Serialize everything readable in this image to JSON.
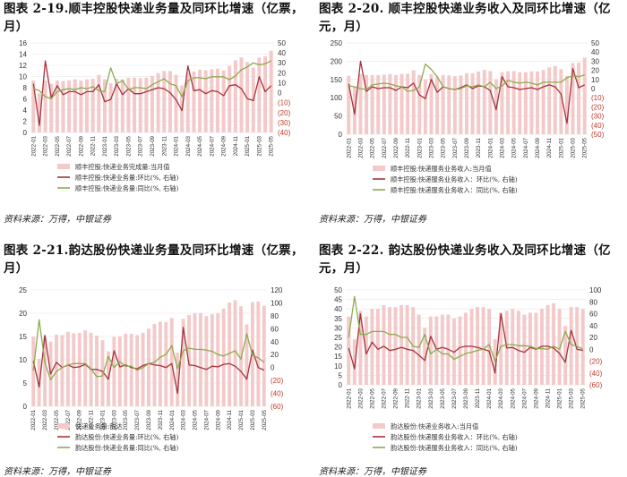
{
  "page": {
    "panels": [
      {
        "title": "图表 2-19.顺丰控股快递业务量及同环比增速（亿票，月）",
        "source": "资料来源：万得，中银证券"
      },
      {
        "title": "图表 2-20. 顺丰控股快递业务收入及同环比增速（亿元，月）",
        "source": "资料来源：万得，中银证券"
      },
      {
        "title": "图表 2-21.韵达股份快递业务量及同环比增速（亿票，月）",
        "source": "资料来源：万得，中银证券"
      },
      {
        "title": "图表 2-22. 韵达股份快递业务收入及同环比增速（亿元，月）",
        "source": "资料来源：万得，中银证券"
      }
    ]
  },
  "chart_data": [
    {
      "type": "bar",
      "x": [
        "2022-01",
        "2022-02",
        "2022-03",
        "2022-04",
        "2022-05",
        "2022-06",
        "2022-07",
        "2022-08",
        "2022-09",
        "2022-10",
        "2022-11",
        "2022-12",
        "2023-01",
        "2023-02",
        "2023-03",
        "2023-04",
        "2023-05",
        "2023-06",
        "2023-07",
        "2023-08",
        "2023-09",
        "2023-10",
        "2023-11",
        "2023-12",
        "2024-01",
        "2024-02",
        "2024-03",
        "2024-04",
        "2024-05",
        "2024-06",
        "2024-07",
        "2024-08",
        "2024-09",
        "2024-10",
        "2024-11",
        "2024-12",
        "2025-01",
        "2025-02",
        "2025-03",
        "2025-04",
        "2025-05"
      ],
      "x_tick_labels": [
        "2022-01",
        "2022-03",
        "2022-05",
        "2022-07",
        "2022-09",
        "2022-11",
        "2023-01",
        "2023-03",
        "2023-05",
        "2023-07",
        "2023-09",
        "2023-11",
        "2024-01",
        "2024-03",
        "2024-05",
        "2024-07",
        "2024-09",
        "2024-11",
        "2025-01",
        "2025-03",
        "2025-05"
      ],
      "y_left": {
        "range": [
          0,
          16
        ],
        "ticks": [
          0,
          2,
          4,
          6,
          8,
          10,
          12,
          14,
          16
        ]
      },
      "y_right": {
        "range": [
          -40,
          50
        ],
        "ticks": [
          "(40)",
          "(30)",
          "(20)",
          "(10)",
          "0",
          "10",
          "20",
          "30",
          "40",
          "50"
        ]
      },
      "series": [
        {
          "name": "顺丰控股:快递业务完成量:当月值",
          "axis": "left",
          "style": "bar",
          "color": "#f3c9c9",
          "values": [
            9.3,
            7.0,
            9.3,
            8.7,
            9.3,
            9.2,
            9.3,
            9.5,
            9.3,
            9.5,
            9.6,
            10.3,
            9.5,
            8.8,
            9.6,
            9.5,
            9.8,
            9.8,
            9.7,
            9.8,
            10.1,
            10.6,
            11.0,
            11.0,
            10.3,
            8.4,
            10.7,
            10.9,
            11.2,
            11.1,
            11.3,
            11.4,
            11.1,
            11.9,
            12.9,
            13.4,
            12.6,
            11.6,
            13.4,
            13.6,
            14.6
          ]
        },
        {
          "name": "顺丰控股:快递业务量:环比(%, 右轴)",
          "axis": "right",
          "style": "line",
          "color": "#a8323c",
          "values": [
            9,
            -33,
            32,
            -5,
            7,
            -2,
            1,
            1,
            -2,
            1,
            1,
            8,
            -9,
            -7,
            9,
            -2,
            4,
            -1,
            -1,
            1,
            3,
            5,
            4,
            0,
            -7,
            -18,
            27,
            2,
            3,
            -1,
            2,
            1,
            -3,
            7,
            8,
            4,
            -6,
            -8,
            16,
            1,
            7
          ]
        },
        {
          "name": "顺丰控股:快递业务量:同比(%, 右轴)",
          "axis": "right",
          "style": "line",
          "color": "#8cab4e",
          "values": [
            4,
            2,
            -4,
            -6,
            1,
            3,
            4,
            3,
            5,
            4,
            6,
            2,
            1,
            25,
            9,
            12,
            3,
            5,
            5,
            4,
            8,
            11,
            14,
            9,
            7,
            -4,
            12,
            15,
            15,
            14,
            16,
            16,
            16,
            13,
            17,
            23,
            26,
            30,
            28,
            29,
            32
          ]
        }
      ]
    },
    {
      "type": "bar",
      "x": [
        "2022-01",
        "2022-02",
        "2022-03",
        "2022-04",
        "2022-05",
        "2022-06",
        "2022-07",
        "2022-08",
        "2022-09",
        "2022-10",
        "2022-11",
        "2022-12",
        "2023-01",
        "2023-02",
        "2023-03",
        "2023-04",
        "2023-05",
        "2023-06",
        "2023-07",
        "2023-08",
        "2023-09",
        "2023-10",
        "2023-11",
        "2023-12",
        "2024-01",
        "2024-02",
        "2024-03",
        "2024-04",
        "2024-05",
        "2024-06",
        "2024-07",
        "2024-08",
        "2024-09",
        "2024-10",
        "2024-11",
        "2024-12",
        "2025-01",
        "2025-02",
        "2025-03",
        "2025-04",
        "2025-05"
      ],
      "x_tick_labels": [
        "2022-01",
        "2022-03",
        "2022-05",
        "2022-07",
        "2022-09",
        "2022-11",
        "2023-01",
        "2023-03",
        "2023-05",
        "2023-07",
        "2023-09",
        "2023-11",
        "2024-01",
        "2024-03",
        "2024-05",
        "2024-07",
        "2024-09",
        "2024-11",
        "2025-01",
        "2025-03",
        "2025-05"
      ],
      "y_left": {
        "range": [
          0,
          250
        ],
        "ticks": [
          0,
          50,
          100,
          150,
          200,
          250
        ]
      },
      "y_right": {
        "range": [
          -50,
          50
        ],
        "ticks": [
          "(50)",
          "(40)",
          "(30)",
          "(20)",
          "(10)",
          "0",
          "10",
          "20",
          "30",
          "40",
          "50"
        ]
      },
      "series": [
        {
          "name": "顺丰控股:快递服务业务收入:当月值",
          "axis": "left",
          "style": "bar",
          "color": "#f3c9c9",
          "values": [
            160,
            130,
            165,
            162,
            162,
            162,
            163,
            165,
            162,
            165,
            166,
            175,
            162,
            150,
            165,
            158,
            162,
            161,
            159,
            161,
            167,
            167,
            172,
            176,
            173,
            150,
            170,
            173,
            173,
            170,
            170,
            172,
            172,
            176,
            183,
            187,
            178,
            160,
            195,
            196,
            210
          ]
        },
        {
          "name": "顺丰控股:快递服务业务收入：环比(%, 右轴)",
          "axis": "right",
          "style": "line",
          "color": "#a8323c",
          "values": [
            5,
            -28,
            30,
            -3,
            2,
            0,
            1,
            1,
            -2,
            2,
            1,
            6,
            -7,
            -11,
            10,
            -4,
            2,
            0,
            -1,
            1,
            4,
            0,
            3,
            2,
            -2,
            -23,
            13,
            2,
            1,
            -1,
            0,
            1,
            -1,
            2,
            4,
            2,
            -6,
            -38,
            22,
            1,
            4
          ]
        },
        {
          "name": "顺丰控股:快递服务业务收入：同比(%, 右轴)",
          "axis": "right",
          "style": "line",
          "color": "#8cab4e",
          "values": [
            3,
            2,
            0,
            -1,
            4,
            5,
            6,
            5,
            3,
            2,
            -3,
            -2,
            2,
            27,
            21,
            13,
            2,
            0,
            -1,
            0,
            3,
            2,
            4,
            2,
            7,
            0,
            3,
            9,
            7,
            6,
            7,
            6,
            4,
            7,
            7,
            7,
            7,
            12,
            14,
            13,
            15
          ]
        }
      ]
    },
    {
      "type": "bar",
      "x": [
        "2022-01",
        "2022-02",
        "2022-03",
        "2022-04",
        "2022-05",
        "2022-06",
        "2022-07",
        "2022-08",
        "2022-09",
        "2022-10",
        "2022-11",
        "2022-12",
        "2023-01",
        "2023-02",
        "2023-03",
        "2023-04",
        "2023-05",
        "2023-06",
        "2023-07",
        "2023-08",
        "2023-09",
        "2023-10",
        "2023-11",
        "2023-12",
        "2024-01",
        "2024-02",
        "2024-03",
        "2024-04",
        "2024-05",
        "2024-06",
        "2024-07",
        "2024-08",
        "2024-09",
        "2024-10",
        "2024-11",
        "2024-12",
        "2025-01",
        "2025-02",
        "2025-03",
        "2025-04",
        "2025-05"
      ],
      "x_tick_labels": [
        "2022-01",
        "2022-03",
        "2022-05",
        "2022-07",
        "2022-09",
        "2022-11",
        "2023-01",
        "2023-03",
        "2023-05",
        "2023-07",
        "2023-09",
        "2023-11",
        "2024-01",
        "2024-03",
        "2024-05",
        "2024-07",
        "2024-09",
        "2024-11",
        "2025-01",
        "2025-03",
        "2025-05"
      ],
      "y_left": {
        "range": [
          0,
          25
        ],
        "ticks": [
          0,
          5,
          10,
          15,
          20,
          25
        ]
      },
      "y_right": {
        "range": [
          -60,
          120
        ],
        "ticks": [
          "(60)",
          "(40)",
          "(20)",
          "0",
          "20",
          "40",
          "60",
          "80",
          "100",
          "120"
        ]
      },
      "series": [
        {
          "name": "快递业务量:韵达",
          "axis": "left",
          "style": "bar",
          "color": "#f3c9c9",
          "values": [
            15.0,
            10.2,
            15.0,
            13.9,
            15.4,
            15.3,
            16.0,
            15.7,
            15.8,
            16.3,
            15.8,
            15.2,
            14.2,
            11.8,
            14.9,
            15.0,
            15.6,
            15.6,
            15.3,
            15.8,
            16.7,
            17.7,
            18.2,
            18.1,
            19.0,
            11.5,
            18.8,
            19.6,
            20.0,
            20.0,
            19.4,
            19.8,
            20.0,
            21.0,
            22.3,
            22.8,
            21.5,
            17.6,
            22.4,
            22.5,
            21.6
          ]
        },
        {
          "name": "韵达股份:快递业务量:环比(%, 右轴)",
          "axis": "right",
          "style": "line",
          "color": "#a8323c",
          "values": [
            10,
            -30,
            50,
            -10,
            8,
            0,
            4,
            0,
            1,
            5,
            -3,
            -3,
            -6,
            -18,
            26,
            1,
            4,
            0,
            -2,
            3,
            6,
            4,
            3,
            0,
            6,
            -40,
            62,
            4,
            3,
            0,
            -3,
            2,
            1,
            5,
            6,
            2,
            -6,
            -18,
            27,
            0,
            -4
          ]
        },
        {
          "name": "韵达股份:快递业务量:同比(%, 右轴)",
          "axis": "right",
          "style": "line",
          "color": "#8cab4e",
          "values": [
            -5,
            74,
            8,
            -19,
            -6,
            0,
            4,
            6,
            6,
            6,
            -2,
            -14,
            -13,
            17,
            0,
            9,
            2,
            2,
            -4,
            0,
            6,
            8,
            16,
            20,
            34,
            -2,
            26,
            30,
            28,
            28,
            27,
            25,
            20,
            18,
            22,
            26,
            13,
            52,
            19,
            15,
            8
          ]
        }
      ]
    },
    {
      "type": "bar",
      "x": [
        "2022-01",
        "2022-02",
        "2022-03",
        "2022-04",
        "2022-05",
        "2022-06",
        "2022-07",
        "2022-08",
        "2022-09",
        "2022-10",
        "2022-11",
        "2022-12",
        "2023-01",
        "2023-02",
        "2023-03",
        "2023-04",
        "2023-05",
        "2023-06",
        "2023-07",
        "2023-08",
        "2023-09",
        "2023-10",
        "2023-11",
        "2023-12",
        "2024-01",
        "2024-02",
        "2024-03",
        "2024-04",
        "2024-05",
        "2024-06",
        "2024-07",
        "2024-08",
        "2024-09",
        "2024-10",
        "2024-11",
        "2024-12",
        "2025-01",
        "2025-02",
        "2025-03",
        "2025-04",
        "2025-05"
      ],
      "x_tick_labels": [
        "2022-01",
        "2022-03",
        "2022-05",
        "2022-07",
        "2022-09",
        "2022-11",
        "2023-01",
        "2023-03",
        "2023-05",
        "2023-07",
        "2023-09",
        "2023-11",
        "2024-01",
        "2024-03",
        "2024-05",
        "2024-07",
        "2024-09",
        "2024-11",
        "2025-01",
        "2025-03",
        "2025-05"
      ],
      "y_left": {
        "range": [
          0,
          50
        ],
        "ticks": [
          0,
          5,
          10,
          15,
          20,
          25,
          30,
          35,
          40,
          45,
          50
        ]
      },
      "y_right": {
        "range": [
          -60,
          100
        ],
        "ticks": [
          "(60)",
          "(40)",
          "(20)",
          "0",
          "20",
          "40",
          "60",
          "80",
          "100"
        ]
      },
      "series": [
        {
          "name": "韵达股份:快递业务收入:当月值",
          "axis": "left",
          "style": "bar",
          "color": "#f3c9c9",
          "values": [
            36,
            24,
            39,
            36,
            40,
            40,
            42,
            41,
            41,
            42,
            42,
            41,
            37,
            30,
            36,
            36,
            37,
            37,
            35,
            36,
            38,
            40,
            41,
            41,
            40,
            24,
            38,
            39,
            40,
            39,
            37,
            38,
            38,
            40,
            42,
            43,
            40,
            31,
            41,
            41,
            40
          ]
        },
        {
          "name": "韵达股份:快递服务业务收入：环比(%, 右轴)",
          "axis": "right",
          "style": "line",
          "color": "#a8323c",
          "values": [
            2,
            -33,
            60,
            -8,
            12,
            0,
            5,
            -2,
            0,
            3,
            0,
            -2,
            -10,
            -19,
            22,
            0,
            3,
            0,
            -5,
            3,
            5,
            5,
            3,
            0,
            -3,
            -40,
            60,
            2,
            3,
            -2,
            -5,
            3,
            0,
            5,
            5,
            2,
            -7,
            -22,
            32,
            0,
            -2
          ]
        },
        {
          "name": "韵达股份:快递服务业务收入：同比(%, 右轴)",
          "axis": "right",
          "style": "line",
          "color": "#8cab4e",
          "values": [
            20,
            89,
            25,
            25,
            30,
            30,
            30,
            25,
            25,
            20,
            20,
            5,
            3,
            25,
            -8,
            0,
            -8,
            -8,
            -17,
            -12,
            -7,
            -5,
            -2,
            0,
            8,
            -20,
            5,
            8,
            8,
            6,
            6,
            5,
            1,
            1,
            0,
            5,
            0,
            30,
            8,
            5,
            0
          ]
        }
      ]
    }
  ]
}
